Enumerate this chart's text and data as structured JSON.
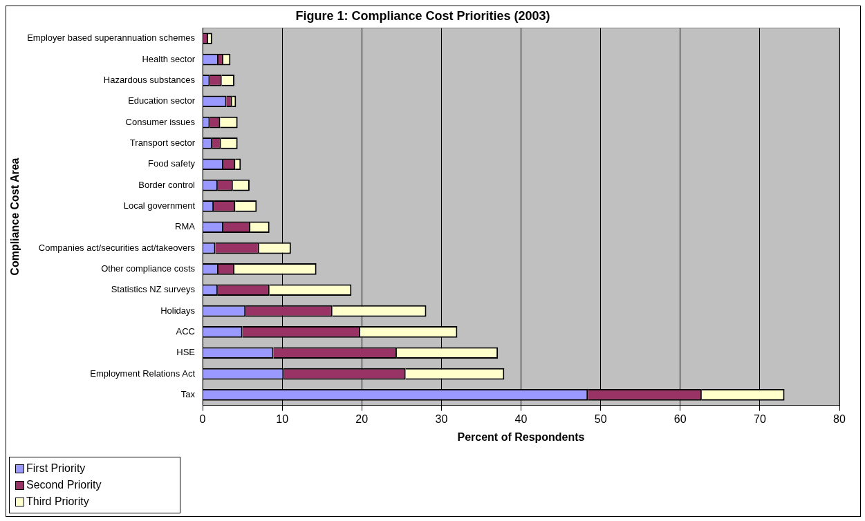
{
  "chart_data": {
    "type": "bar",
    "orientation": "horizontal",
    "stacked": true,
    "title": "Figure 1: Compliance Cost Priorities (2003)",
    "xlabel": "Percent of Respondents",
    "ylabel": "Compliance Cost Area",
    "categories": [
      "Employer based superannuation schemes",
      "Health sector",
      "Hazardous substances",
      "Education sector",
      "Consumer issues",
      "Transport sector",
      "Food safety",
      "Border control",
      "Local government",
      "RMA",
      "Companies act/securities act/takeovers",
      "Other compliance costs",
      "Statistics NZ surveys",
      "Holidays",
      "ACC",
      "HSE",
      "Employment Relations Act",
      "Tax"
    ],
    "series": [
      {
        "name": "First Priority",
        "color": "#9999ff",
        "values": [
          0,
          2.0,
          0.9,
          3.0,
          0.9,
          1.2,
          2.6,
          1.9,
          1.4,
          2.6,
          1.6,
          2.0,
          1.9,
          5.4,
          5.0,
          8.9,
          10.2,
          48.4
        ]
      },
      {
        "name": "Second Priority",
        "color": "#993366",
        "values": [
          0.7,
          0.6,
          1.5,
          0.7,
          1.3,
          1.1,
          1.5,
          1.9,
          2.7,
          3.4,
          5.5,
          2.0,
          6.5,
          10.9,
          14.8,
          15.5,
          15.3,
          14.3
        ]
      },
      {
        "name": "Third Priority",
        "color": "#ffffcc",
        "values": [
          0.5,
          0.9,
          1.6,
          0.5,
          2.2,
          2.1,
          0.7,
          2.1,
          2.7,
          2.4,
          4.0,
          10.3,
          10.3,
          11.8,
          12.2,
          12.7,
          12.4,
          10.4
        ]
      }
    ],
    "xlim": [
      0,
      80
    ],
    "xticks": [
      0,
      10,
      20,
      30,
      40,
      50,
      60,
      70,
      80
    ],
    "grid": "x",
    "legend": "bottom left"
  }
}
